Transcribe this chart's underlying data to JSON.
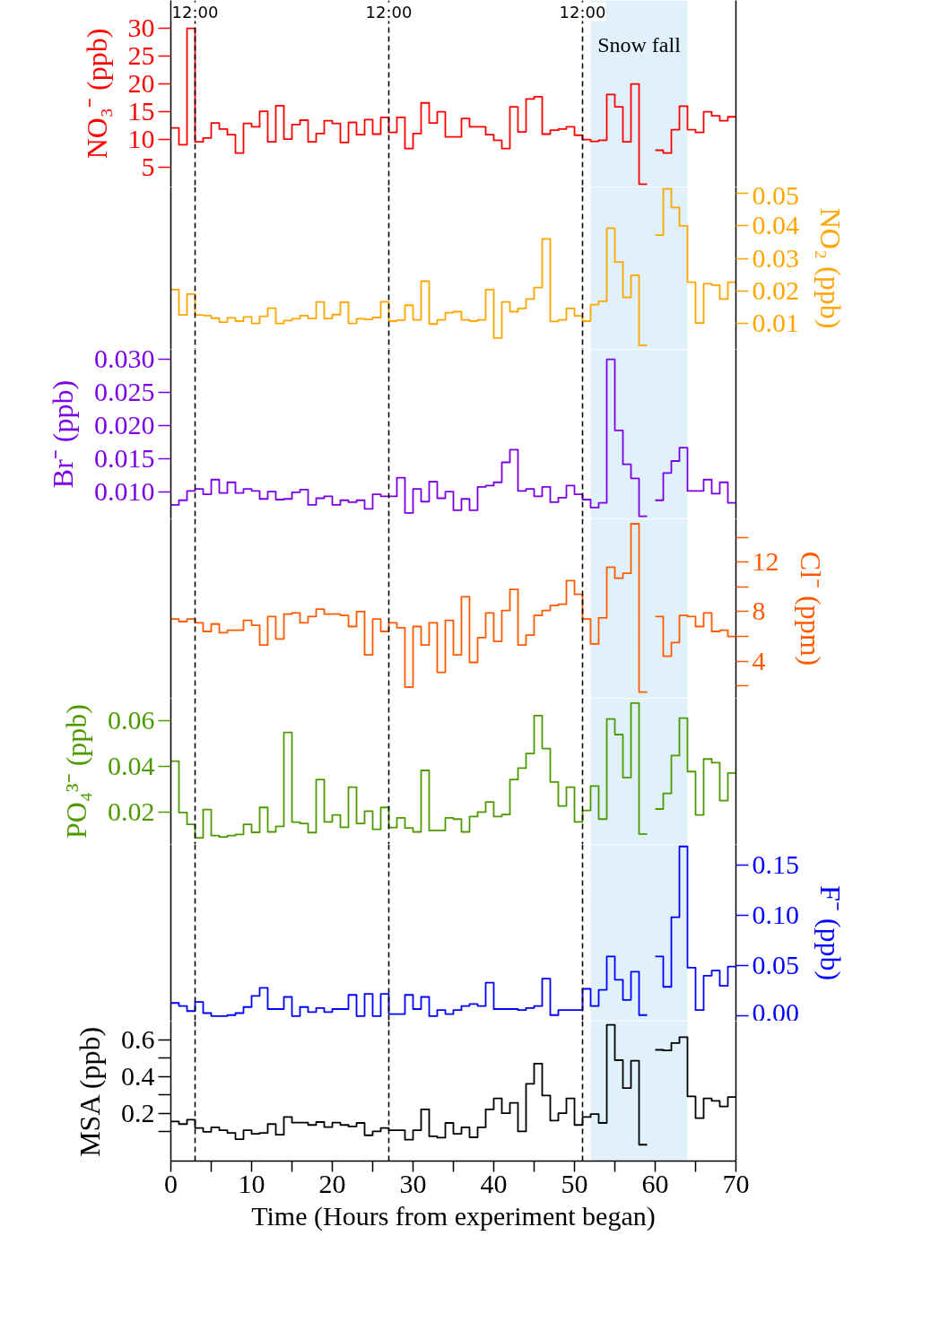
{
  "chart_data": [
    {
      "type": "step",
      "ylabel": "NO₃⁻ (ppb)",
      "xlim": [
        0,
        70
      ],
      "ylim": [
        1.5,
        35
      ],
      "annotations": [
        {
          "text": "12:00",
          "x": 3
        },
        {
          "text": "12:00",
          "x": 27
        },
        {
          "text": "12:00",
          "x": 51
        }
      ],
      "yticks": [
        5,
        10,
        15,
        20,
        25,
        30
      ],
      "tick_labels": "y",
      "x": [
        0,
        1,
        2,
        3,
        4,
        5,
        6,
        7,
        8,
        9,
        10,
        11,
        12,
        13,
        14,
        15,
        16,
        17,
        18,
        19,
        20,
        21,
        22,
        23,
        24,
        25,
        26,
        27,
        28,
        29,
        30,
        31,
        32,
        33,
        34,
        35,
        36,
        37,
        38,
        39,
        40,
        41,
        42,
        43,
        44,
        45,
        46,
        47,
        48,
        49,
        50,
        51,
        52,
        53,
        54,
        55,
        56,
        57,
        58,
        59,
        60,
        61,
        62,
        63,
        64,
        65,
        66,
        67,
        68,
        69,
        70
      ],
      "series": [
        {
          "color": "#ff0000",
          "values": [
            12.1,
            9.1,
            30,
            9.6,
            10.3,
            13.0,
            11.9,
            10.9,
            7.6,
            12.9,
            12.3,
            15.1,
            9.6,
            16.1,
            10.1,
            12.7,
            13.5,
            9.6,
            11.1,
            13.4,
            12.9,
            9.5,
            13.1,
            10.9,
            13.6,
            11.0,
            14.0,
            11.3,
            14.0,
            8.4,
            11.1,
            16.6,
            13.0,
            15.0,
            10.5,
            10.5,
            13.8,
            12.3,
            12.3,
            10.9,
            9.9,
            8.4,
            15.9,
            11.4,
            17.3,
            17.7,
            11.0,
            11.7,
            11.9,
            12.3,
            10.8,
            10.0,
            9.7,
            9.9,
            18.1,
            15.9,
            9.6,
            20.0,
            2.0,
            null,
            8.1,
            7.6,
            11.8,
            16.0,
            11.8,
            11.3,
            15.0,
            14.3,
            13.4,
            14.1,
            14.1
          ]
        }
      ],
      "ref_lines": [
        {
          "axis": "x",
          "value": 3,
          "color": "#000000",
          "line_style": "dashed"
        },
        {
          "axis": "x",
          "value": 27,
          "color": "#000000",
          "line_style": "dashed"
        },
        {
          "axis": "x",
          "value": 51,
          "color": "#000000",
          "line_style": "dashed"
        }
      ],
      "bands": [
        {
          "axis": "x",
          "from": 52,
          "to": 64,
          "label": "Snow fall",
          "color": "#e1f1fb"
        }
      ]
    },
    {
      "type": "step",
      "y2label": "NO₂ (ppb)",
      "xlim": [
        0,
        70
      ],
      "y2lim": [
        0.002,
        0.052
      ],
      "y2ticks": [
        0.01,
        0.02,
        0.03,
        0.04,
        0.05
      ],
      "tick_labels": "y",
      "x": [
        0,
        1,
        2,
        3,
        4,
        5,
        6,
        7,
        8,
        9,
        10,
        11,
        12,
        13,
        14,
        15,
        16,
        17,
        18,
        19,
        20,
        21,
        22,
        23,
        24,
        25,
        26,
        27,
        28,
        29,
        30,
        31,
        32,
        33,
        34,
        35,
        36,
        37,
        38,
        39,
        40,
        41,
        42,
        43,
        44,
        45,
        46,
        47,
        48,
        49,
        50,
        51,
        52,
        53,
        54,
        55,
        56,
        57,
        58,
        59,
        60,
        61,
        62,
        63,
        64,
        65,
        66,
        67,
        68,
        69,
        70
      ],
      "series": [
        {
          "color": "#ffa500",
          "axis": "y2",
          "values": [
            0.0204,
            0.0126,
            0.019,
            0.0126,
            0.0124,
            0.0116,
            0.0104,
            0.0117,
            0.0107,
            0.012,
            0.01,
            0.0122,
            0.0147,
            0.01,
            0.0109,
            0.0114,
            0.0124,
            0.0115,
            0.0166,
            0.0115,
            0.0127,
            0.0165,
            0.01,
            0.0114,
            0.0112,
            0.0118,
            0.0167,
            0.0107,
            0.011,
            0.0156,
            0.0111,
            0.023,
            0.0098,
            0.0111,
            0.0133,
            0.0136,
            0.0111,
            0.0107,
            0.0111,
            0.0204,
            0.0055,
            0.0166,
            0.0136,
            0.0146,
            0.0175,
            0.021,
            0.036,
            0.0106,
            0.0111,
            0.0146,
            0.0123,
            0.0107,
            0.0158,
            0.0168,
            0.0393,
            0.0289,
            0.018,
            0.0248,
            0.0032,
            null,
            0.0372,
            0.0514,
            0.0457,
            0.04,
            0.0227,
            0.0101,
            0.0222,
            0.0218,
            0.0175,
            0.0227,
            0.0227
          ]
        }
      ],
      "ref_lines": [
        {
          "axis": "x",
          "value": 3,
          "color": "#000000",
          "line_style": "dashed"
        },
        {
          "axis": "x",
          "value": 27,
          "color": "#000000",
          "line_style": "dashed"
        },
        {
          "axis": "x",
          "value": 51,
          "color": "#000000",
          "line_style": "dashed"
        }
      ],
      "bands": [
        {
          "axis": "x",
          "from": 52,
          "to": 64,
          "color": "#e1f1fb"
        }
      ]
    },
    {
      "type": "step",
      "ylabel": "Br⁻ (ppb)",
      "xlim": [
        0,
        70
      ],
      "ylim": [
        0.006,
        0.0315
      ],
      "yticks": [
        {
          "value": 0.01,
          "label": "0.010"
        },
        0.015,
        {
          "value": 0.02,
          "label": "0.020"
        },
        0.025,
        {
          "value": 0.03,
          "label": "0.030"
        }
      ],
      "tick_labels": "y",
      "x": [
        0,
        1,
        2,
        3,
        4,
        5,
        6,
        7,
        8,
        9,
        10,
        11,
        12,
        13,
        14,
        15,
        16,
        17,
        18,
        19,
        20,
        21,
        22,
        23,
        24,
        25,
        26,
        27,
        28,
        29,
        30,
        31,
        32,
        33,
        34,
        35,
        36,
        37,
        38,
        39,
        40,
        41,
        42,
        43,
        44,
        45,
        46,
        47,
        48,
        49,
        50,
        51,
        52,
        53,
        54,
        55,
        56,
        57,
        58,
        59,
        60,
        61,
        62,
        63,
        64,
        65,
        66,
        67,
        68,
        69,
        70
      ],
      "series": [
        {
          "color": "#7b00e6",
          "values": [
            0.0081,
            0.0088,
            0.0102,
            0.0105,
            0.0097,
            0.0119,
            0.0099,
            0.0115,
            0.0099,
            0.0105,
            0.0102,
            0.009,
            0.0101,
            0.0089,
            0.009,
            0.01,
            0.0104,
            0.0081,
            0.0091,
            0.0094,
            0.0081,
            0.0088,
            0.0085,
            0.0088,
            0.0075,
            0.0097,
            0.0094,
            0.0094,
            0.0122,
            0.0069,
            0.0105,
            0.0086,
            0.0116,
            0.0091,
            0.0101,
            0.0073,
            0.009,
            0.0073,
            0.0108,
            0.011,
            0.0115,
            0.0145,
            0.0164,
            0.0102,
            0.0105,
            0.0094,
            0.0108,
            0.0085,
            0.0092,
            0.011,
            0.0097,
            0.0089,
            0.0077,
            0.0084,
            0.03,
            0.0193,
            0.0142,
            0.0121,
            0.0064,
            null,
            0.0088,
            0.0129,
            0.0147,
            0.0167,
            0.0102,
            0.0102,
            0.0119,
            0.0098,
            0.0115,
            0.0084,
            0.0084
          ]
        }
      ],
      "ref_lines": [
        {
          "axis": "x",
          "value": 3,
          "color": "#000000",
          "line_style": "dashed"
        },
        {
          "axis": "x",
          "value": 27,
          "color": "#000000",
          "line_style": "dashed"
        },
        {
          "axis": "x",
          "value": 51,
          "color": "#000000",
          "line_style": "dashed"
        }
      ],
      "bands": [
        {
          "axis": "x",
          "from": 52,
          "to": 64,
          "color": "#e1f1fb"
        }
      ]
    },
    {
      "type": "step",
      "y2label": "Cl⁻ (ppm)",
      "xlim": [
        0,
        70
      ],
      "y2lim": [
        1,
        15.5
      ],
      "y2ticks": [
        {
          "value": 2,
          "label": null
        },
        4,
        {
          "value": 6,
          "label": null
        },
        8,
        {
          "value": 10,
          "label": null
        },
        12,
        {
          "value": 14,
          "label": null
        }
      ],
      "tick_labels": "y",
      "x": [
        0,
        1,
        2,
        3,
        4,
        5,
        6,
        7,
        8,
        9,
        10,
        11,
        12,
        13,
        14,
        15,
        16,
        17,
        18,
        19,
        20,
        21,
        22,
        23,
        24,
        25,
        26,
        27,
        28,
        29,
        30,
        31,
        32,
        33,
        34,
        35,
        36,
        37,
        38,
        39,
        40,
        41,
        42,
        43,
        44,
        45,
        46,
        47,
        48,
        49,
        50,
        51,
        52,
        53,
        54,
        55,
        56,
        57,
        58,
        59,
        60,
        61,
        62,
        63,
        64,
        65,
        66,
        67,
        68,
        69,
        70
      ],
      "series": [
        {
          "color": "#ff5a00",
          "axis": "y2",
          "values": [
            7.4,
            7.2,
            7.4,
            7.1,
            6.4,
            7.0,
            6.3,
            6.5,
            6.5,
            7.3,
            6.9,
            5.3,
            7.6,
            5.8,
            7.8,
            7.9,
            7.1,
            7.6,
            8.2,
            7.8,
            7.8,
            7.7,
            6.8,
            8.0,
            4.5,
            7.4,
            6.4,
            7.1,
            6.7,
            1.9,
            6.8,
            5.3,
            7.1,
            3.1,
            7.3,
            4.5,
            9.2,
            3.9,
            5.9,
            7.9,
            5.6,
            8.1,
            9.8,
            5.3,
            6.1,
            7.7,
            8.1,
            8.5,
            8.6,
            10.5,
            9.4,
            7.4,
            5.4,
            7.5,
            11.6,
            10.7,
            11.1,
            15.1,
            1.5,
            null,
            7.6,
            4.4,
            5.5,
            7.7,
            7.6,
            6.8,
            7.9,
            6.4,
            6.5,
            6.0,
            6.0
          ]
        }
      ],
      "ref_lines": [
        {
          "axis": "x",
          "value": 3,
          "color": "#000000",
          "line_style": "dashed"
        },
        {
          "axis": "x",
          "value": 27,
          "color": "#000000",
          "line_style": "dashed"
        },
        {
          "axis": "x",
          "value": 51,
          "color": "#000000",
          "line_style": "dashed"
        }
      ],
      "bands": [
        {
          "axis": "x",
          "from": 52,
          "to": 64,
          "color": "#e1f1fb"
        }
      ]
    },
    {
      "type": "step",
      "ylabel": "PO₄³⁻ (ppb)",
      "xlim": [
        0,
        70
      ],
      "ylim": [
        0.006,
        0.07
      ],
      "yticks": [
        0.02,
        0.04,
        0.06
      ],
      "tick_labels": "y",
      "x": [
        0,
        1,
        2,
        3,
        4,
        5,
        6,
        7,
        8,
        9,
        10,
        11,
        12,
        13,
        14,
        15,
        16,
        17,
        18,
        19,
        20,
        21,
        22,
        23,
        24,
        25,
        26,
        27,
        28,
        29,
        30,
        31,
        32,
        33,
        34,
        35,
        36,
        37,
        38,
        39,
        40,
        41,
        42,
        43,
        44,
        45,
        46,
        47,
        48,
        49,
        50,
        51,
        52,
        53,
        54,
        55,
        56,
        57,
        58,
        59,
        60,
        61,
        62,
        63,
        64,
        65,
        66,
        67,
        68,
        69,
        70
      ],
      "series": [
        {
          "color": "#4c9a00",
          "values": [
            0.0425,
            0.02,
            0.0148,
            0.0089,
            0.0213,
            0.0099,
            0.0093,
            0.0099,
            0.0104,
            0.0148,
            0.0113,
            0.0222,
            0.0115,
            0.0139,
            0.055,
            0.0158,
            0.0152,
            0.0112,
            0.0344,
            0.0159,
            0.0189,
            0.0135,
            0.0311,
            0.0152,
            0.0206,
            0.0126,
            0.0222,
            0.0134,
            0.0176,
            0.0132,
            0.0115,
            0.0384,
            0.0121,
            0.0121,
            0.0176,
            0.0171,
            0.0115,
            0.0182,
            0.0202,
            0.0246,
            0.0182,
            0.0191,
            0.0344,
            0.0394,
            0.0458,
            0.0624,
            0.048,
            0.0333,
            0.0228,
            0.0311,
            0.0159,
            0.0209,
            0.0316,
            0.0171,
            0.0609,
            0.0541,
            0.0353,
            0.0679,
            0.0106,
            null,
            0.0215,
            0.0283,
            0.0449,
            0.0613,
            0.0379,
            0.0189,
            0.0434,
            0.0418,
            0.0252,
            0.0373,
            0.0373
          ]
        }
      ],
      "ref_lines": [
        {
          "axis": "x",
          "value": 3,
          "color": "#000000",
          "line_style": "dashed"
        },
        {
          "axis": "x",
          "value": 27,
          "color": "#000000",
          "line_style": "dashed"
        },
        {
          "axis": "x",
          "value": 51,
          "color": "#000000",
          "line_style": "dashed"
        }
      ],
      "bands": [
        {
          "axis": "x",
          "from": 52,
          "to": 64,
          "color": "#e1f1fb"
        }
      ]
    },
    {
      "type": "step",
      "y2label": "F⁻ (ppb)",
      "xlim": [
        0,
        70
      ],
      "y2lim": [
        -0.005,
        0.17
      ],
      "y2ticks": [
        {
          "value": 0,
          "label": "0.00"
        },
        0.05,
        {
          "value": 0.1,
          "label": "0.10"
        },
        0.15
      ],
      "tick_labels": "y",
      "x": [
        0,
        1,
        2,
        3,
        4,
        5,
        6,
        7,
        8,
        9,
        10,
        11,
        12,
        13,
        14,
        15,
        16,
        17,
        18,
        19,
        20,
        21,
        22,
        23,
        24,
        25,
        26,
        27,
        28,
        29,
        30,
        31,
        32,
        33,
        34,
        35,
        36,
        37,
        38,
        39,
        40,
        41,
        42,
        43,
        44,
        45,
        46,
        47,
        48,
        49,
        50,
        51,
        52,
        53,
        54,
        55,
        56,
        57,
        58,
        59,
        60,
        61,
        62,
        63,
        64,
        65,
        66,
        67,
        68,
        69,
        70
      ],
      "series": [
        {
          "color": "#0000ff",
          "axis": "y2",
          "values": [
            0.013,
            0.01,
            0.005,
            0.014,
            0.003,
            0.0,
            0.0,
            0.001,
            0.003,
            0.009,
            0.02,
            0.028,
            0.007,
            0.007,
            0.019,
            0.0,
            0.009,
            0.004,
            0.008,
            0.004,
            0.007,
            0.007,
            0.021,
            0.0,
            0.022,
            0.0,
            0.022,
            0.002,
            0.002,
            0.021,
            0.007,
            0.019,
            0.0,
            0.006,
            0.002,
            0.006,
            0.01,
            0.012,
            0.01,
            0.033,
            0.007,
            0.007,
            0.007,
            0.006,
            0.008,
            0.01,
            0.037,
            0.001,
            0.006,
            0.006,
            0.006,
            0.027,
            0.01,
            0.026,
            0.059,
            0.036,
            0.016,
            0.044,
            0.001,
            null,
            0.059,
            0.029,
            0.098,
            0.168,
            0.048,
            0.006,
            0.04,
            0.045,
            0.03,
            0.049,
            0.049
          ]
        }
      ],
      "ref_lines": [
        {
          "axis": "x",
          "value": 3,
          "color": "#000000",
          "line_style": "dashed"
        },
        {
          "axis": "x",
          "value": 27,
          "color": "#000000",
          "line_style": "dashed"
        },
        {
          "axis": "x",
          "value": 51,
          "color": "#000000",
          "line_style": "dashed"
        }
      ],
      "bands": [
        {
          "axis": "x",
          "from": 52,
          "to": 64,
          "color": "#e1f1fb"
        }
      ]
    },
    {
      "type": "step",
      "ylabel": "MSA (ppb)",
      "xlabel": "Time (Hours from experiment began)",
      "xlim": [
        0,
        70
      ],
      "xticks": [
        0,
        {
          "value": 5,
          "label": null
        },
        10,
        {
          "value": 15,
          "label": null
        },
        20,
        {
          "value": 25,
          "label": null
        },
        30,
        {
          "value": 35,
          "label": null
        },
        40,
        {
          "value": 45,
          "label": null
        },
        50,
        {
          "value": 55,
          "label": null
        },
        60,
        {
          "value": 65,
          "label": null
        },
        70
      ],
      "ylim": [
        -0.06,
        0.7
      ],
      "yticks": [
        {
          "value": 0.1,
          "label": null
        },
        0.2,
        {
          "value": 0.3,
          "label": null
        },
        0.4,
        {
          "value": 0.5,
          "label": null
        },
        0.6
      ],
      "x": [
        0,
        1,
        2,
        3,
        4,
        5,
        6,
        7,
        8,
        9,
        10,
        11,
        12,
        13,
        14,
        15,
        16,
        17,
        18,
        19,
        20,
        21,
        22,
        23,
        24,
        25,
        26,
        27,
        28,
        29,
        30,
        31,
        32,
        33,
        34,
        35,
        36,
        37,
        38,
        39,
        40,
        41,
        42,
        43,
        44,
        45,
        46,
        47,
        48,
        49,
        50,
        51,
        52,
        53,
        54,
        55,
        56,
        57,
        58,
        59,
        60,
        61,
        62,
        63,
        64,
        65,
        66,
        67,
        68,
        69,
        70
      ],
      "series": [
        {
          "color": "#000000",
          "values": [
            0.155,
            0.141,
            0.165,
            0.12,
            0.099,
            0.123,
            0.107,
            0.093,
            0.059,
            0.107,
            0.088,
            0.093,
            0.141,
            0.083,
            0.179,
            0.149,
            0.149,
            0.136,
            0.152,
            0.125,
            0.149,
            0.136,
            0.128,
            0.147,
            0.08,
            0.101,
            0.12,
            0.107,
            0.107,
            0.056,
            0.107,
            0.221,
            0.075,
            0.067,
            0.147,
            0.088,
            0.123,
            0.069,
            0.123,
            0.221,
            0.28,
            0.2,
            0.256,
            0.101,
            0.36,
            0.469,
            0.296,
            0.16,
            0.2,
            0.28,
            0.136,
            0.179,
            0.195,
            0.147,
            0.68,
            0.488,
            0.336,
            0.485,
            0.029,
            null,
            0.544,
            0.541,
            0.581,
            0.613,
            0.291,
            0.173,
            0.28,
            0.267,
            0.237,
            0.288,
            0.288
          ]
        }
      ],
      "ref_lines": [
        {
          "axis": "x",
          "value": 3,
          "color": "#000000",
          "line_style": "dashed"
        },
        {
          "axis": "x",
          "value": 27,
          "color": "#000000",
          "line_style": "dashed"
        },
        {
          "axis": "x",
          "value": 51,
          "color": "#000000",
          "line_style": "dashed"
        }
      ],
      "bands": [
        {
          "axis": "x",
          "from": 52,
          "to": 64,
          "color": "#e1f1fb"
        }
      ]
    }
  ]
}
